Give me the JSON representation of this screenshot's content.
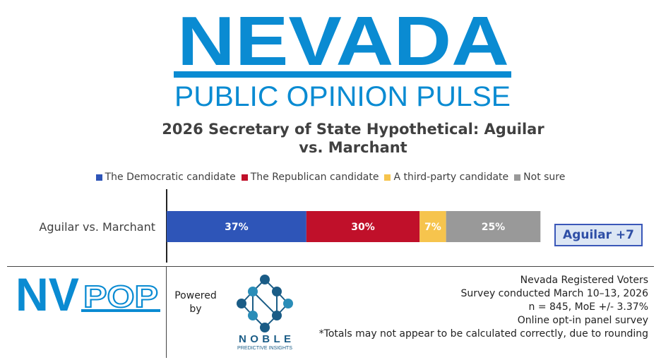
{
  "brand": {
    "title": "NEVADA",
    "subtitle": "PUBLIC OPINION PULSE",
    "color": "#0a8bd2"
  },
  "footer": {
    "logo_text": "NVPOP",
    "logo_letters": [
      "NV",
      "POP"
    ],
    "powered_by": [
      "Powered",
      "by"
    ],
    "partner_name": "NOBLE",
    "partner_tagline": "PREDICTIVE INSIGHTS",
    "partner_color": "#1a5c86",
    "notes": [
      "Nevada Registered Voters",
      "Survey conducted March 10–13, 2026",
      "n = 845, MoE +/- 3.37%",
      "Online opt-in panel survey",
      "*Totals may not appear to be calculated correctly, due to rounding"
    ]
  },
  "chart_data": {
    "type": "bar",
    "orientation": "horizontal-stacked",
    "title": "2026 Secretary of State Hypothetical: Aguilar vs. Marchant",
    "title_lines": [
      "2026 Secretary of State Hypothetical: Aguilar",
      "vs. Marchant"
    ],
    "categories": [
      "Aguilar vs. Marchant"
    ],
    "series": [
      {
        "name": "The Democratic candidate",
        "values": [
          37
        ],
        "label": "37%",
        "color": "#2e55b8"
      },
      {
        "name": "The Republican candidate",
        "values": [
          30
        ],
        "label": "30%",
        "color": "#c0102a"
      },
      {
        "name": "A third-party candidate",
        "values": [
          7
        ],
        "label": "7%",
        "color": "#f6c44d"
      },
      {
        "name": "Not sure",
        "values": [
          25
        ],
        "label": "25%",
        "color": "#999999"
      }
    ],
    "xlim": [
      0,
      101
    ],
    "legend_position": "top",
    "grid": false,
    "annotation": "Aguilar +7"
  }
}
